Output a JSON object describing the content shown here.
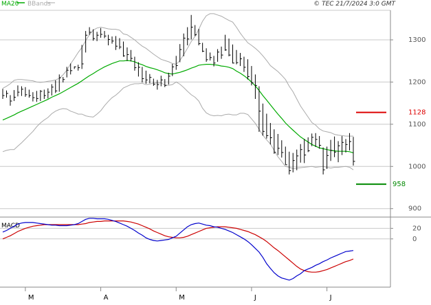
{
  "header": {
    "legend_ma": "MA20",
    "legend_bb": "BBands",
    "timestamp": "© TEC 21/7/2024 3:0 GMT"
  },
  "colors": {
    "background": "#ffffff",
    "grid": "#c8c8c8",
    "price": "#000000",
    "ma": "#00aa00",
    "bands": "#aaaaaa",
    "resistance": "#dd0000",
    "support": "#008800",
    "macd": "#0000cc",
    "signal": "#cc0000",
    "axis_text": "#555555"
  },
  "chart_data": [
    {
      "type": "line",
      "panel": "price",
      "title": "",
      "ylim": [
        880,
        1370
      ],
      "y_ticks": [
        900,
        1000,
        1100,
        1200,
        1300
      ],
      "y_tick_labels": [
        "900",
        "1000",
        "1100",
        "1200",
        "1300"
      ],
      "x_month_labels": [
        "M",
        "A",
        "M",
        "J",
        "J"
      ],
      "x_month_index": [
        6,
        26,
        46,
        66,
        86
      ],
      "levels": [
        {
          "name": "resistance",
          "value": 1128,
          "label": "1128"
        },
        {
          "name": "support",
          "value": 958,
          "label": "958"
        }
      ],
      "ohlc": {
        "high": [
          1184,
          1180,
          1169,
          1181,
          1192,
          1190,
          1188,
          1182,
          1176,
          1179,
          1181,
          1182,
          1185,
          1195,
          1204,
          1218,
          1212,
          1236,
          1244,
          1237,
          1241,
          1288,
          1321,
          1330,
          1325,
          1319,
          1328,
          1321,
          1312,
          1308,
          1309,
          1304,
          1296,
          1282,
          1276,
          1260,
          1247,
          1236,
          1227,
          1219,
          1208,
          1205,
          1215,
          1207,
          1222,
          1243,
          1262,
          1290,
          1315,
          1330,
          1359,
          1335,
          1326,
          1293,
          1280,
          1270,
          1262,
          1278,
          1284,
          1312,
          1303,
          1289,
          1276,
          1269,
          1260,
          1254,
          1238,
          1218,
          1190,
          1149,
          1125,
          1103,
          1088,
          1077,
          1062,
          1047,
          1035,
          1032,
          1040,
          1053,
          1065,
          1069,
          1078,
          1079,
          1072,
          1045,
          1047,
          1063,
          1071,
          1060,
          1072,
          1065,
          1079,
          1070
        ],
        "low": [
          1160,
          1163,
          1144,
          1155,
          1166,
          1167,
          1165,
          1163,
          1154,
          1153,
          1155,
          1160,
          1161,
          1168,
          1174,
          1177,
          1199,
          1211,
          1218,
          1231,
          1227,
          1231,
          1270,
          1312,
          1298,
          1297,
          1305,
          1304,
          1287,
          1291,
          1276,
          1278,
          1260,
          1250,
          1249,
          1227,
          1213,
          1199,
          1196,
          1197,
          1191,
          1182,
          1190,
          1188,
          1194,
          1214,
          1229,
          1247,
          1261,
          1287,
          1301,
          1309,
          1287,
          1271,
          1248,
          1251,
          1237,
          1248,
          1255,
          1274,
          1261,
          1244,
          1242,
          1238,
          1224,
          1206,
          1192,
          1160,
          1082,
          1073,
          1066,
          1052,
          1030,
          1027,
          1021,
          1004,
          981,
          986,
          991,
          1009,
          1008,
          1034,
          1048,
          1046,
          1042,
          981,
          994,
          1013,
          1022,
          1010,
          1027,
          1033,
          1038,
          1002
        ],
        "close": [
          1168,
          1173,
          1155,
          1164,
          1176,
          1183,
          1170,
          1168,
          1163,
          1161,
          1178,
          1168,
          1176,
          1188,
          1179,
          1210,
          1206,
          1228,
          1227,
          1236,
          1234,
          1243,
          1311,
          1318,
          1303,
          1311,
          1313,
          1309,
          1301,
          1297,
          1285,
          1283,
          1262,
          1265,
          1256,
          1234,
          1235,
          1208,
          1205,
          1211,
          1195,
          1194,
          1205,
          1192,
          1214,
          1236,
          1239,
          1277,
          1304,
          1302,
          1330,
          1312,
          1291,
          1273,
          1253,
          1258,
          1245,
          1271,
          1264,
          1276,
          1264,
          1245,
          1246,
          1255,
          1235,
          1213,
          1198,
          1192,
          1131,
          1083,
          1073,
          1068,
          1033,
          1043,
          1033,
          1004,
          990,
          1014,
          1025,
          1040,
          1027,
          1037,
          1069,
          1064,
          1050,
          992,
          1026,
          1038,
          1034,
          1049,
          1057,
          1052,
          1059,
          1012
        ]
      },
      "series": [
        {
          "name": "MA20",
          "values": [
            1110,
            1114,
            1118,
            1122,
            1127,
            1131,
            1135,
            1139,
            1143,
            1147,
            1151,
            1155,
            1159,
            1164,
            1168,
            1172,
            1177,
            1182,
            1187,
            1192,
            1197,
            1203,
            1209,
            1215,
            1220,
            1226,
            1231,
            1236,
            1240,
            1244,
            1247,
            1250,
            1250,
            1251,
            1250,
            1248,
            1244,
            1241,
            1237,
            1234,
            1232,
            1229,
            1226,
            1222,
            1220,
            1219,
            1221,
            1223,
            1226,
            1229,
            1233,
            1236,
            1240,
            1241,
            1242,
            1242,
            1241,
            1240,
            1238,
            1237,
            1235,
            1232,
            1226,
            1221,
            1215,
            1208,
            1200,
            1191,
            1180,
            1168,
            1157,
            1146,
            1135,
            1124,
            1114,
            1103,
            1094,
            1086,
            1078,
            1070,
            1064,
            1058,
            1052,
            1048,
            1044,
            1042,
            1040,
            1038,
            1037,
            1036,
            1036,
            1036,
            1035,
            1032
          ]
        },
        {
          "name": "BBands upper",
          "values": [
            1185,
            1190,
            1196,
            1204,
            1206,
            1206,
            1205,
            1204,
            1203,
            1200,
            1199,
            1200,
            1202,
            1203,
            1205,
            1209,
            1217,
            1228,
            1243,
            1256,
            1270,
            1282,
            1298,
            1312,
            1323,
            1328,
            1330,
            1328,
            1326,
            1325,
            1325,
            1323,
            1314,
            1312,
            1306,
            1300,
            1292,
            1285,
            1280,
            1273,
            1266,
            1260,
            1254,
            1251,
            1248,
            1244,
            1242,
            1251,
            1265,
            1280,
            1296,
            1308,
            1325,
            1344,
            1357,
            1362,
            1362,
            1359,
            1356,
            1351,
            1346,
            1342,
            1330,
            1316,
            1304,
            1293,
            1287,
            1280,
            1272,
            1262,
            1251,
            1239,
            1232,
            1225,
            1216,
            1206,
            1190,
            1177,
            1160,
            1143,
            1130,
            1117,
            1104,
            1098,
            1089,
            1084,
            1082,
            1080,
            1076,
            1074,
            1073,
            1072,
            1072,
            1072
          ]
        },
        {
          "name": "BBands lower",
          "values": [
            1035,
            1038,
            1040,
            1040,
            1048,
            1056,
            1065,
            1074,
            1083,
            1094,
            1103,
            1110,
            1116,
            1125,
            1131,
            1135,
            1137,
            1136,
            1131,
            1128,
            1124,
            1124,
            1120,
            1118,
            1117,
            1124,
            1132,
            1144,
            1154,
            1163,
            1169,
            1177,
            1186,
            1190,
            1194,
            1196,
            1196,
            1197,
            1194,
            1195,
            1198,
            1198,
            1198,
            1193,
            1192,
            1194,
            1200,
            1195,
            1187,
            1178,
            1170,
            1164,
            1155,
            1138,
            1127,
            1122,
            1120,
            1121,
            1120,
            1123,
            1124,
            1122,
            1122,
            1126,
            1126,
            1123,
            1113,
            1102,
            1088,
            1074,
            1063,
            1053,
            1038,
            1023,
            1012,
            1000,
            998,
            995,
            996,
            997,
            998,
            999,
            1000,
            998,
            999,
            1000,
            998,
            996,
            998,
            998,
            999,
            1000,
            998,
            992
          ]
        }
      ]
    },
    {
      "type": "line",
      "panel": "macd",
      "title": "MACD",
      "ylim": [
        -90,
        40
      ],
      "y_ticks": [
        20,
        0
      ],
      "y_tick_labels": [
        "20",
        "0"
      ],
      "series": [
        {
          "name": "MACD",
          "values": [
            13,
            16,
            20,
            24,
            28,
            30,
            31,
            31,
            31,
            30,
            29,
            28,
            27,
            26,
            26,
            25,
            25,
            25,
            26,
            27,
            29,
            33,
            37,
            39,
            39,
            38,
            38,
            38,
            37,
            35,
            33,
            30,
            27,
            24,
            20,
            16,
            11,
            7,
            2,
            -1,
            -3,
            -4,
            -3,
            -2,
            -1,
            2,
            5,
            11,
            17,
            23,
            27,
            29,
            30,
            28,
            26,
            25,
            23,
            22,
            20,
            18,
            15,
            12,
            8,
            4,
            0,
            -5,
            -11,
            -18,
            -25,
            -35,
            -47,
            -56,
            -64,
            -70,
            -74,
            -76,
            -78,
            -75,
            -70,
            -66,
            -60,
            -57,
            -54,
            -50,
            -47,
            -43,
            -40,
            -36,
            -33,
            -30,
            -27,
            -24,
            -23,
            -22
          ]
        },
        {
          "name": "Signal",
          "values": [
            0,
            3,
            6,
            10,
            14,
            17,
            20,
            22,
            24,
            25,
            26,
            27,
            27,
            27,
            27,
            27,
            27,
            27,
            27,
            27,
            27,
            28,
            29,
            31,
            32,
            33,
            33,
            34,
            34,
            34,
            34,
            34,
            34,
            33,
            32,
            30,
            28,
            25,
            22,
            19,
            15,
            12,
            9,
            6,
            4,
            3,
            2,
            2,
            3,
            5,
            8,
            11,
            14,
            17,
            20,
            21,
            22,
            23,
            23,
            23,
            22,
            21,
            20,
            18,
            16,
            14,
            11,
            8,
            4,
            0,
            -5,
            -11,
            -17,
            -22,
            -28,
            -34,
            -40,
            -46,
            -52,
            -57,
            -60,
            -62,
            -63,
            -63,
            -62,
            -60,
            -58,
            -55,
            -52,
            -49,
            -46,
            -43,
            -41,
            -38
          ]
        }
      ]
    }
  ]
}
